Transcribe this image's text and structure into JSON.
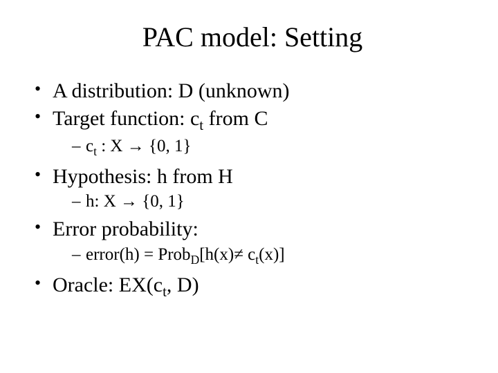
{
  "title": "PAC model: Setting",
  "bullets": {
    "b1": {
      "text": "A distribution: D (unknown)"
    },
    "b2": {
      "prefix": "Target function: c",
      "sub": "t",
      "suffix": " from C",
      "sub1": {
        "prefix": "c",
        "sub": "t",
        "mid": " : X ",
        "arrow": "→",
        "tail": " {0, 1}"
      }
    },
    "b3": {
      "text": "Hypothesis: h from H",
      "sub1": {
        "prefix": "h: X ",
        "arrow": "→",
        "tail": " {0, 1}"
      }
    },
    "b4": {
      "text": "Error probability:",
      "sub1": {
        "prefix": "error(h) = Prob",
        "sub1": "D",
        "mid1": "[h(x)",
        "neq": "≠",
        "mid2": " c",
        "sub2": "t",
        "tail": "(x)]"
      }
    },
    "b5": {
      "prefix": "Oracle: EX(c",
      "sub": "t",
      "suffix": ", D)"
    }
  }
}
